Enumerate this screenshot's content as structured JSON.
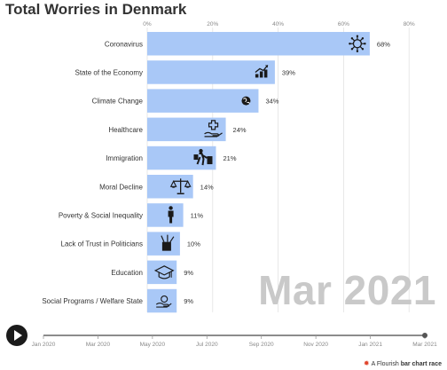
{
  "title": "Total Worries in Denmark",
  "date_label": "Mar 2021",
  "credit": {
    "prefix": "A Flourish",
    "suffix": "bar chart race"
  },
  "colors": {
    "bar": "#a9c8f7",
    "axis": "#888888",
    "grid": "#e3e3e3",
    "bigdate": "#c9c9c9"
  },
  "chart_data": {
    "type": "bar",
    "orientation": "horizontal",
    "categories": [
      "Coronavirus",
      "State of the Economy",
      "Climate Change",
      "Healthcare",
      "Immigration",
      "Moral Decline",
      "Poverty & Social Inequality",
      "Lack of Trust in Politicians",
      "Education",
      "Social Programs / Welfare State"
    ],
    "values": [
      68,
      39,
      34,
      24,
      21,
      14,
      11,
      10,
      9,
      9
    ],
    "value_labels": [
      "68%",
      "39%",
      "34%",
      "24%",
      "21%",
      "14%",
      "11%",
      "10%",
      "9%",
      "9%"
    ],
    "icons": [
      "virus-icon",
      "growth-chart-icon",
      "globe-icon",
      "healthcare-icon",
      "immigration-icon",
      "scales-icon",
      "poverty-icon",
      "trust-icon",
      "graduation-cap-icon",
      "welfare-icon"
    ],
    "xaxis": {
      "ticks": [
        0,
        20,
        40,
        60,
        80
      ],
      "tick_labels": [
        "0%",
        "20%",
        "40%",
        "60%",
        "80%"
      ],
      "xlim": [
        0,
        80
      ]
    },
    "timeline": {
      "ticks": [
        "Jan 2020",
        "Mar 2020",
        "May 2020",
        "Jul 2020",
        "Sep 2020",
        "Nov 2020",
        "Jan 2021",
        "Mar 2021"
      ],
      "current": "Mar 2021"
    },
    "grid": true
  }
}
